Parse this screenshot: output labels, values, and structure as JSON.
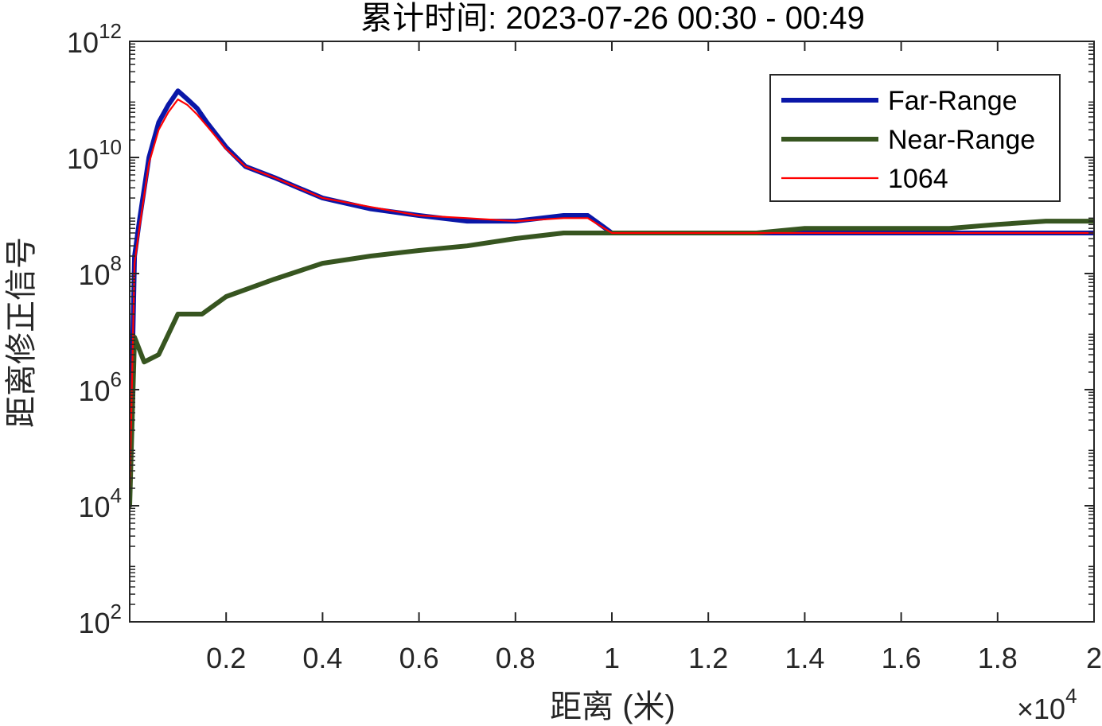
{
  "chart_data": {
    "type": "line",
    "title": "累计时间: 2023-07-26 00:30 - 00:49",
    "xlabel": "距离 (米)",
    "ylabel": "距离修正信号",
    "x_multiplier_label": "×10",
    "x_multiplier_exp": "4",
    "xlim": [
      0,
      20000
    ],
    "ylim": [
      100,
      1000000000000
    ],
    "yscale": "log",
    "grid": false,
    "x_ticks": [
      {
        "value": 2000,
        "label": "0.2"
      },
      {
        "value": 4000,
        "label": "0.4"
      },
      {
        "value": 6000,
        "label": "0.6"
      },
      {
        "value": 8000,
        "label": "0.8"
      },
      {
        "value": 10000,
        "label": "1"
      },
      {
        "value": 12000,
        "label": "1.2"
      },
      {
        "value": 14000,
        "label": "1.4"
      },
      {
        "value": 16000,
        "label": "1.6"
      },
      {
        "value": 18000,
        "label": "1.8"
      },
      {
        "value": 20000,
        "label": "2"
      }
    ],
    "y_ticks": [
      {
        "value": 100,
        "base": "10",
        "exp": "2"
      },
      {
        "value": 10000,
        "base": "10",
        "exp": "4"
      },
      {
        "value": 1000000,
        "base": "10",
        "exp": "6"
      },
      {
        "value": 100000000,
        "base": "10",
        "exp": "8"
      },
      {
        "value": 10000000000,
        "base": "10",
        "exp": "10"
      },
      {
        "value": 1000000000000,
        "base": "10",
        "exp": "12"
      }
    ],
    "legend_position": "top-right",
    "series": [
      {
        "name": "Far-Range",
        "color": "#0a17a8",
        "width": 6,
        "x": [
          0,
          100,
          200,
          400,
          600,
          800,
          1000,
          1200,
          1400,
          1600,
          2000,
          2400,
          3000,
          3500,
          4000,
          5000,
          6000,
          7000,
          8000,
          9000,
          9500,
          10000,
          12000,
          14000,
          16000,
          18000,
          20000
        ],
        "y": [
          20000,
          200000000,
          800000000,
          10000000000,
          40000000000,
          80000000000,
          140000000000,
          100000000000,
          70000000000,
          40000000000,
          15000000000,
          7000000000,
          4500000000,
          3000000000,
          2000000000,
          1300000000,
          1000000000,
          800000000,
          800000000,
          1000000000,
          1000000000,
          500000000,
          500000000,
          500000000,
          500000000,
          500000000,
          500000000
        ]
      },
      {
        "name": "Near-Range",
        "color": "#375520",
        "width": 6,
        "x": [
          0,
          100,
          300,
          600,
          1000,
          1500,
          2000,
          3000,
          4000,
          5000,
          6000,
          7000,
          8000,
          9000,
          10000,
          11000,
          12000,
          13000,
          14000,
          15000,
          16000,
          17000,
          18000,
          19000,
          20000
        ],
        "y": [
          10000,
          8000000,
          3000000,
          4000000,
          20000000,
          20000000,
          40000000,
          80000000,
          150000000,
          200000000,
          250000000,
          300000000,
          400000000,
          500000000,
          500000000,
          500000000,
          500000000,
          500000000,
          600000000,
          600000000,
          600000000,
          600000000,
          700000000,
          800000000,
          800000000
        ]
      },
      {
        "name": "1064",
        "color": "#ff0000",
        "width": 2.2,
        "x": [
          0,
          100,
          200,
          400,
          600,
          800,
          1000,
          1200,
          1400,
          1600,
          2000,
          2400,
          3000,
          3500,
          4000,
          5000,
          6000,
          7000,
          8000,
          9000,
          9500,
          10000,
          12000,
          14000,
          16000,
          18000,
          20000
        ],
        "y": [
          20000,
          150000000,
          600000000,
          8000000000,
          30000000000,
          60000000000,
          100000000000,
          80000000000,
          55000000000,
          35000000000,
          14000000000,
          7000000000,
          4500000000,
          3000000000,
          2000000000,
          1400000000,
          1000000000,
          900000000,
          800000000,
          900000000,
          900000000,
          500000000,
          500000000,
          500000000,
          500000000,
          500000000,
          500000000
        ]
      }
    ]
  }
}
